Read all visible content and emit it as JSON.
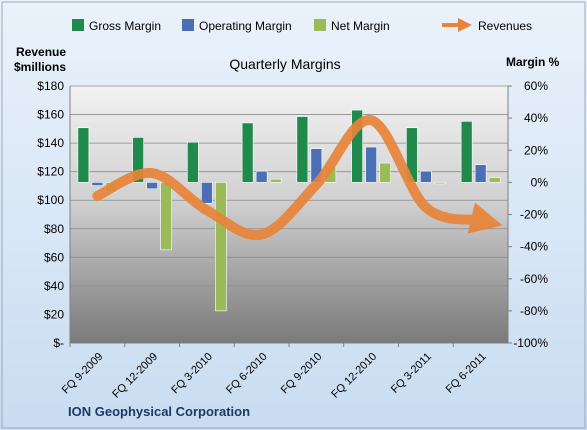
{
  "chart_data": {
    "type": "bar",
    "title": "Quarterly Margins",
    "footer": "ION Geophysical Corporation",
    "left_axis": {
      "label_line1": "Revenue",
      "label_line2": "$millions",
      "min": 0,
      "max": 180,
      "ticks": [
        "$-",
        "$20",
        "$40",
        "$60",
        "$80",
        "$100",
        "$120",
        "$140",
        "$160",
        "$180"
      ]
    },
    "right_axis": {
      "label": "Margin %",
      "min": -100,
      "max": 60,
      "ticks": [
        "-100%",
        "-80%",
        "-60%",
        "-40%",
        "-20%",
        "0%",
        "20%",
        "40%",
        "60%"
      ]
    },
    "categories": [
      "FQ 9-2009",
      "FQ 12-2009",
      "FQ 3-2010",
      "FQ 6-2010",
      "FQ 9-2010",
      "FQ 12-2010",
      "FQ 3-2011",
      "FQ 6-2011"
    ],
    "series": [
      {
        "name": "Gross Margin",
        "axis": "right",
        "color": "#1f8a4c",
        "values": [
          34,
          28,
          25,
          37,
          41,
          45,
          34,
          38
        ]
      },
      {
        "name": "Operating Margin",
        "axis": "right",
        "color": "#4a6fb5",
        "values": [
          -2,
          -4,
          -13,
          7,
          21,
          22,
          7,
          11
        ]
      },
      {
        "name": "Net Margin",
        "axis": "right",
        "color": "#9bbb59",
        "values": [
          -6,
          -42,
          -80,
          2,
          10,
          12,
          0,
          3
        ]
      },
      {
        "name": "Revenues",
        "axis": "left",
        "type": "line",
        "color": "#e8843a",
        "values": [
          103,
          119,
          93,
          76,
          111,
          156,
          95,
          86
        ]
      }
    ]
  }
}
